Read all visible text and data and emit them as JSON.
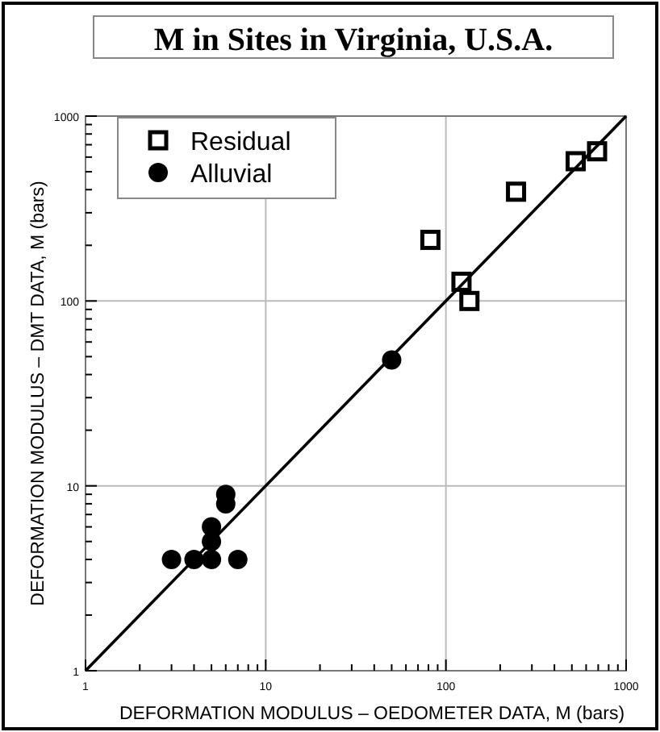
{
  "chart_data": {
    "type": "scatter",
    "title": "M in Sites in Virginia, U.S.A.",
    "xlabel": "DEFORMATION MODULUS – OEDOMETER DATA, M (bars)",
    "ylabel": "DEFORMATION MODULUS – DMT DATA, M (bars)",
    "log": "xy",
    "grid": true,
    "legend": "top left",
    "xlim": [
      1,
      1000
    ],
    "ylim": [
      1,
      1000
    ],
    "xticks": [
      1,
      {
        "value": 2,
        "label": null
      },
      {
        "value": 3,
        "label": null
      },
      {
        "value": 4,
        "label": null
      },
      {
        "value": 5,
        "label": null
      },
      {
        "value": 6,
        "label": null
      },
      {
        "value": 7,
        "label": null
      },
      {
        "value": 8,
        "label": null
      },
      {
        "value": 9,
        "label": null
      },
      10,
      {
        "value": 20,
        "label": null
      },
      {
        "value": 30,
        "label": null
      },
      {
        "value": 40,
        "label": null
      },
      {
        "value": 50,
        "label": null
      },
      {
        "value": 60,
        "label": null
      },
      {
        "value": 70,
        "label": null
      },
      {
        "value": 80,
        "label": null
      },
      {
        "value": 90,
        "label": null
      },
      100,
      {
        "value": 200,
        "label": null
      },
      {
        "value": 300,
        "label": null
      },
      {
        "value": 400,
        "label": null
      },
      {
        "value": 500,
        "label": null
      },
      {
        "value": 600,
        "label": null
      },
      {
        "value": 700,
        "label": null
      },
      {
        "value": 800,
        "label": null
      },
      {
        "value": 900,
        "label": null
      },
      1000
    ],
    "yticks": [
      1,
      {
        "value": 2,
        "label": null
      },
      {
        "value": 3,
        "label": null
      },
      {
        "value": 4,
        "label": null
      },
      {
        "value": 5,
        "label": null
      },
      {
        "value": 6,
        "label": null
      },
      {
        "value": 7,
        "label": null
      },
      {
        "value": 8,
        "label": null
      },
      {
        "value": 9,
        "label": null
      },
      10,
      {
        "value": 20,
        "label": null
      },
      {
        "value": 30,
        "label": null
      },
      {
        "value": 40,
        "label": null
      },
      {
        "value": 50,
        "label": null
      },
      {
        "value": 60,
        "label": null
      },
      {
        "value": 70,
        "label": null
      },
      {
        "value": 80,
        "label": null
      },
      {
        "value": 90,
        "label": null
      },
      100,
      {
        "value": 200,
        "label": null
      },
      {
        "value": 300,
        "label": null
      },
      {
        "value": 400,
        "label": null
      },
      {
        "value": 500,
        "label": null
      },
      {
        "value": 600,
        "label": null
      },
      {
        "value": 700,
        "label": null
      },
      {
        "value": 800,
        "label": null
      },
      {
        "value": 900,
        "label": null
      },
      1000
    ],
    "series": [
      {
        "name": "Residual",
        "color": "#000000",
        "marker": "square",
        "x": [
          82,
          122,
          135,
          245,
          525,
          690
        ],
        "values": [
          214,
          127,
          100,
          390,
          570,
          645
        ]
      },
      {
        "name": "Alluvial",
        "color": "#000000",
        "marker": "circle",
        "x": [
          3,
          4,
          5,
          7,
          5,
          5,
          6,
          6,
          50
        ],
        "values": [
          4,
          4,
          4,
          4,
          5,
          6,
          9,
          8,
          48
        ]
      },
      {
        "type": "line",
        "color": "#000000",
        "marker": "none",
        "x": [
          1,
          1000
        ],
        "values": [
          1,
          1000
        ]
      }
    ]
  }
}
